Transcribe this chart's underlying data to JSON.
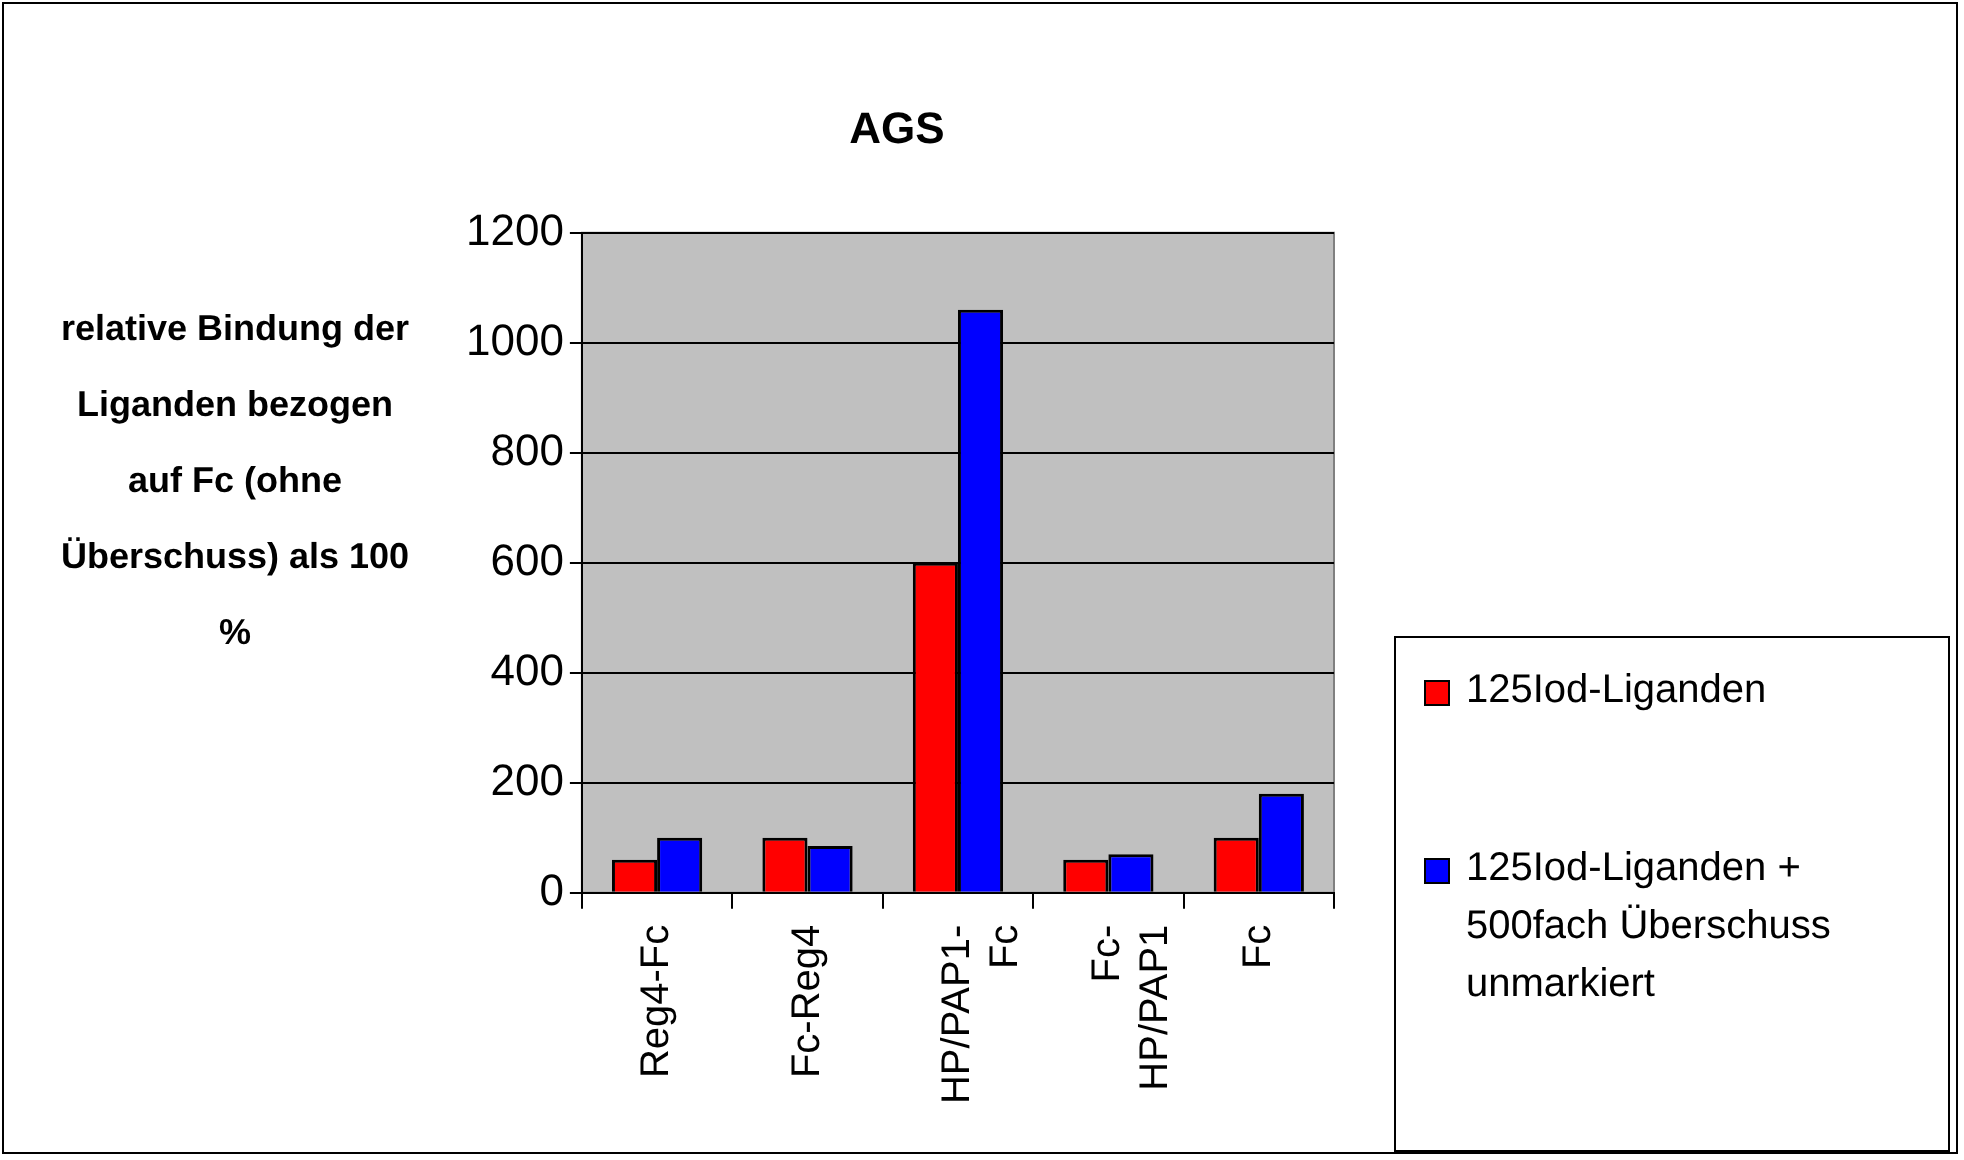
{
  "chart_data": {
    "type": "bar",
    "title": "AGS",
    "ylabel": "relative Bindung der Liganden bezogen auf Fc (ohne Überschuss) als 100 %",
    "categories": [
      "Reg4-Fc",
      "Fc-Reg4",
      "HP/PAP1-Fc",
      "Fc-HP/PAP1",
      "Fc"
    ],
    "series": [
      {
        "name": "125Iod-Liganden",
        "color": "#ff0000",
        "values": [
          60,
          100,
          600,
          60,
          100
        ]
      },
      {
        "name": "125Iod-Liganden + 500fach Überschuss unmarkiert",
        "color": "#0000ff",
        "values": [
          100,
          85,
          1060,
          70,
          180
        ]
      }
    ],
    "ylim": [
      0,
      1200
    ],
    "yticks": [
      0,
      200,
      400,
      600,
      800,
      1000,
      1200
    ],
    "grid": "y",
    "legend": "right"
  }
}
